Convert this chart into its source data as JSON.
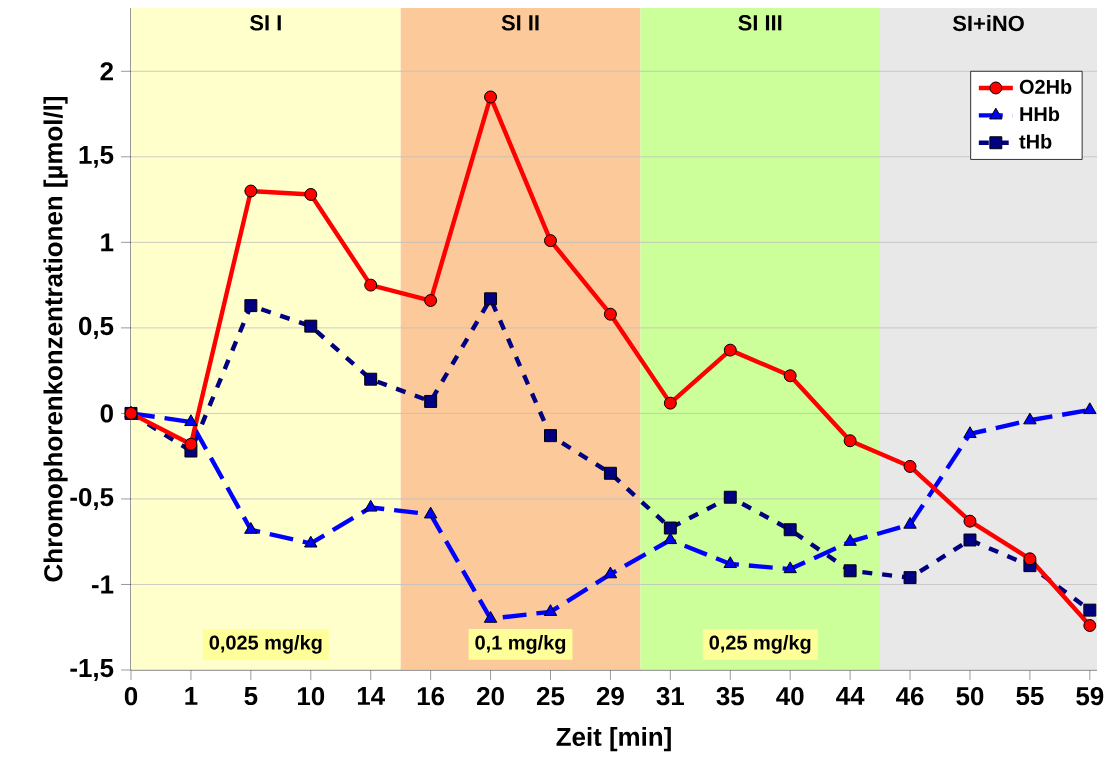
{
  "chart_data": {
    "type": "line",
    "xlabel": "Zeit [min]",
    "ylabel": "Chromophorenkonzentrationen [µmol/l]",
    "categories": [
      "0",
      "1",
      "5",
      "10",
      "14",
      "16",
      "20",
      "25",
      "29",
      "31",
      "35",
      "40",
      "44",
      "46",
      "50",
      "55",
      "59"
    ],
    "series": [
      {
        "name": "O2Hb",
        "color": "#ff0000",
        "marker": "circle",
        "line_style": "solid",
        "values": [
          0,
          -0.18,
          1.3,
          1.28,
          0.75,
          0.66,
          1.85,
          1.01,
          0.58,
          0.06,
          0.37,
          0.22,
          -0.16,
          -0.31,
          -0.63,
          -0.85,
          -1.24
        ]
      },
      {
        "name": "HHb",
        "color": "#0000ff",
        "marker": "triangle",
        "line_style": "dashed",
        "values": [
          0,
          -0.05,
          -0.68,
          -0.76,
          -0.55,
          -0.59,
          -1.2,
          -1.16,
          -0.94,
          -0.74,
          -0.88,
          -0.91,
          -0.75,
          -0.65,
          -0.12,
          -0.04,
          0.02
        ]
      },
      {
        "name": "tHb",
        "color": "#000080",
        "marker": "square",
        "line_style": "dotted",
        "values": [
          0,
          -0.22,
          0.63,
          0.51,
          0.2,
          0.07,
          0.67,
          -0.13,
          -0.35,
          -0.67,
          -0.49,
          -0.68,
          -0.92,
          -0.96,
          -0.74,
          -0.89,
          -1.15
        ]
      }
    ],
    "ylim": [
      -1.5,
      2.37
    ],
    "yticks": [
      {
        "value": -1.5,
        "label": "-1,5"
      },
      {
        "value": -1,
        "label": "-1"
      },
      {
        "value": -0.5,
        "label": "-0,5"
      },
      0,
      {
        "value": 0.5,
        "label": "0,5"
      },
      1,
      {
        "value": 1.5,
        "label": "1,5"
      },
      2
    ],
    "grid": "y",
    "legend": "top right",
    "bands": [
      {
        "axis": "x",
        "from": "0",
        "to": "14",
        "label": "SI I",
        "color": "#ffffcc"
      },
      {
        "axis": "x",
        "from": "16",
        "to": "29",
        "label": "SI II",
        "color": "#fcc99a"
      },
      {
        "axis": "x",
        "from": "31",
        "to": "44",
        "label": "SI III",
        "color": "#ccff99"
      },
      {
        "axis": "x",
        "from": "46",
        "to": "59",
        "label": "SI+iNO",
        "color": "#e8e8e8"
      }
    ],
    "annotations": [
      "0,025 mg/kg",
      "0,1 mg/kg",
      "0,25 mg/kg"
    ]
  }
}
